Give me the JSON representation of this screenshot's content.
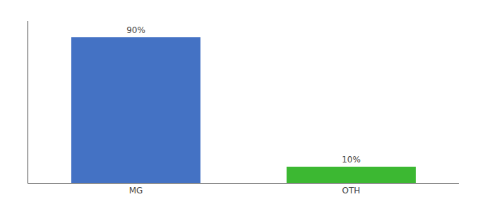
{
  "chart_data": {
    "type": "bar",
    "categories": [
      "MG",
      "OTH"
    ],
    "values": [
      90,
      10
    ],
    "colors": [
      "#4472c4",
      "#3cb832"
    ],
    "data_labels": true,
    "value_labels": [
      "90%",
      "10%"
    ],
    "ylim": [
      0,
      100
    ],
    "grid": false,
    "tick_labels": "x"
  }
}
